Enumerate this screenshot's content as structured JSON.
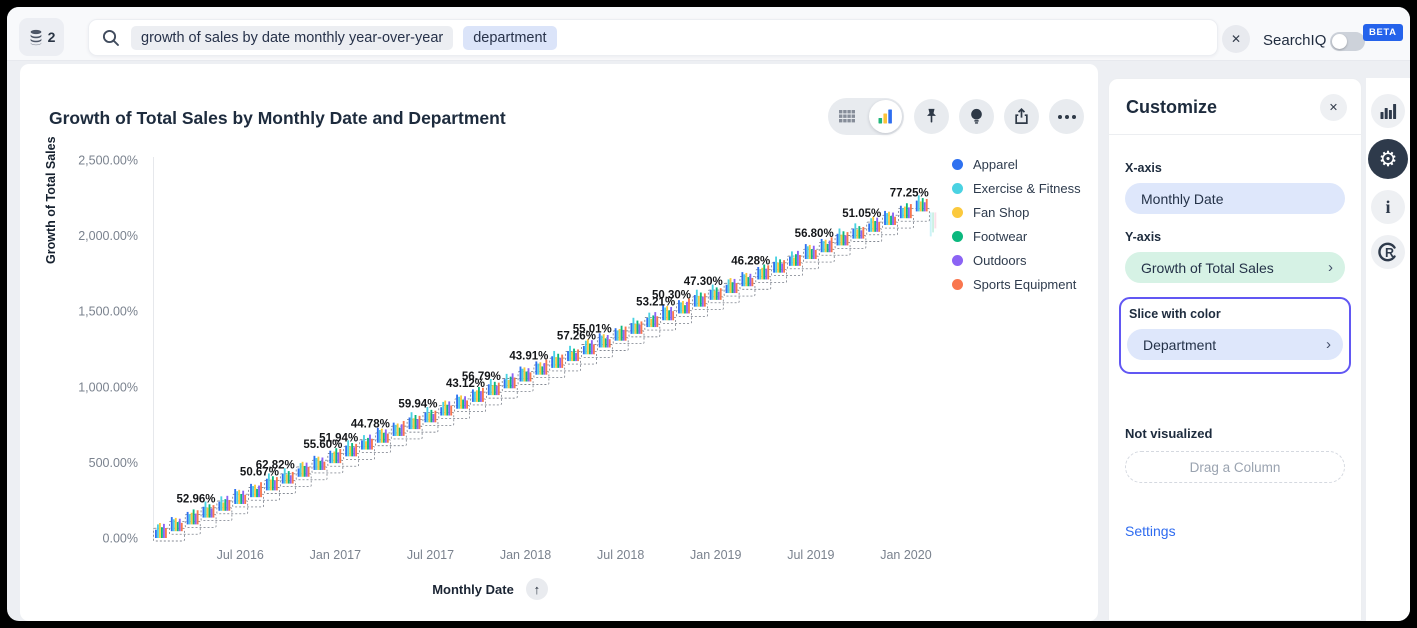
{
  "topbar": {
    "datasource_badge": "2",
    "search_tokens": [
      "growth of sales by date monthly year-over-year",
      "department"
    ],
    "clear_glyph": "✕",
    "searchiq_label": "SearchIQ",
    "beta_badge": "BETA",
    "searchiq_toggle_state": "off",
    "icons": [
      "database-icon",
      "search-icon",
      "close-icon"
    ]
  },
  "chart": {
    "title": "Growth of Total Sales by Monthly Date and Department",
    "toolbar_icons": [
      "table-view-icon",
      "chart-view-icon",
      "pin-icon",
      "insights-bulb-icon",
      "share-icon",
      "more-options-icon"
    ],
    "selected_view": "chart-view",
    "sort_glyph": "↑",
    "x_axis_sort": "ascending"
  },
  "chart_data": {
    "type": "bar",
    "title": "Growth of Total Sales by Monthly Date and Department",
    "xlabel": "Monthly Date",
    "ylabel": "Growth of Total Sales",
    "y_ticks": [
      "0.00%",
      "500.00%",
      "1,000.00%",
      "1,500.00%",
      "2,000.00%",
      "2,500.00%"
    ],
    "y_tick_values_pct": [
      0,
      500,
      1000,
      1500,
      2000,
      2500
    ],
    "ylim_pct": [
      0,
      2500
    ],
    "x_ticks": [
      "Jul 2016",
      "Jan 2017",
      "Jul 2017",
      "Jan 2018",
      "Jul 2018",
      "Jan 2019",
      "Jul 2019",
      "Jan 2020"
    ],
    "x_tick_month_indices": [
      5,
      11,
      17,
      23,
      29,
      35,
      41,
      47
    ],
    "x_start": "Feb 2016",
    "x_end": "Feb 2020",
    "n_month_clusters": 49,
    "approx_cumulative_growth_pct_per_month": 45,
    "grid": false,
    "legend_position": "right",
    "legend": [
      {
        "label": "Apparel",
        "color": "#2e71f0"
      },
      {
        "label": "Exercise & Fitness",
        "color": "#4ad2e2"
      },
      {
        "label": "Fan Shop",
        "color": "#fbc93d"
      },
      {
        "label": "Footwear",
        "color": "#0bb87e"
      },
      {
        "label": "Outdoors",
        "color": "#8b63f4"
      },
      {
        "label": "Sports Equipment",
        "color": "#f9764e"
      }
    ],
    "annotations": [
      {
        "label": "52.96%",
        "pct": 52.96,
        "month_index": 3,
        "date": "May 2016"
      },
      {
        "label": "50.67%",
        "pct": 50.67,
        "month_index": 7,
        "date": "Sep 2016"
      },
      {
        "label": "62.82%",
        "pct": 62.82,
        "month_index": 8,
        "date": "Oct 2016"
      },
      {
        "label": "55.60%",
        "pct": 55.6,
        "month_index": 11,
        "date": "Jan 2017"
      },
      {
        "label": "51.94%",
        "pct": 51.94,
        "month_index": 12,
        "date": "Feb 2017"
      },
      {
        "label": "44.78%",
        "pct": 44.78,
        "month_index": 14,
        "date": "Apr 2017"
      },
      {
        "label": "59.94%",
        "pct": 59.94,
        "month_index": 17,
        "date": "Jul 2017"
      },
      {
        "label": "43.12%",
        "pct": 43.12,
        "month_index": 20,
        "date": "Oct 2017"
      },
      {
        "label": "56.79%",
        "pct": 56.79,
        "month_index": 21,
        "date": "Nov 2017"
      },
      {
        "label": "43.91%",
        "pct": 43.91,
        "month_index": 24,
        "date": "Feb 2018"
      },
      {
        "label": "57.26%",
        "pct": 57.26,
        "month_index": 27,
        "date": "May 2018"
      },
      {
        "label": "55.01%",
        "pct": 55.01,
        "month_index": 28,
        "date": "Jun 2018"
      },
      {
        "label": "53.21%",
        "pct": 53.21,
        "month_index": 32,
        "date": "Oct 2018"
      },
      {
        "label": "50.30%",
        "pct": 50.3,
        "month_index": 33,
        "date": "Nov 2018"
      },
      {
        "label": "47.30%",
        "pct": 47.3,
        "month_index": 35,
        "date": "Jan 2019"
      },
      {
        "label": "46.28%",
        "pct": 46.28,
        "month_index": 38,
        "date": "Apr 2019"
      },
      {
        "label": "56.80%",
        "pct": 56.8,
        "month_index": 42,
        "date": "Aug 2019"
      },
      {
        "label": "51.05%",
        "pct": 51.05,
        "month_index": 45,
        "date": "Nov 2019"
      },
      {
        "label": "77.25%",
        "pct": 77.25,
        "month_index": 48,
        "date": "Feb 2020"
      }
    ]
  },
  "customize": {
    "title": "Customize",
    "close_glyph": "✕",
    "x_axis": {
      "label": "X-axis",
      "value": "Monthly Date"
    },
    "y_axis": {
      "label": "Y-axis",
      "value": "Growth of Total Sales",
      "chevron": "›"
    },
    "slice": {
      "label": "Slice with color",
      "value": "Department",
      "chevron": "›",
      "highlighted": true
    },
    "not_visualized": {
      "label": "Not visualized",
      "dropzone": "Drag a Column"
    },
    "settings_label": "Settings"
  },
  "rail": {
    "icons": [
      "bar-chart-icon",
      "gear-icon",
      "info-icon",
      "r-analysis-icon"
    ],
    "active": "gear-icon",
    "gear_glyph": "⚙"
  },
  "colors": {
    "page_bg": "#edeff3",
    "card_bg": "#ffffff",
    "accent_blue": "#2563eb",
    "highlight_border": "#6157f3",
    "pill_lavender": "#dee7fb",
    "pill_mint": "#d6f2e5",
    "link_blue": "#2e6bf0",
    "dark_text": "#1d2b3d"
  }
}
